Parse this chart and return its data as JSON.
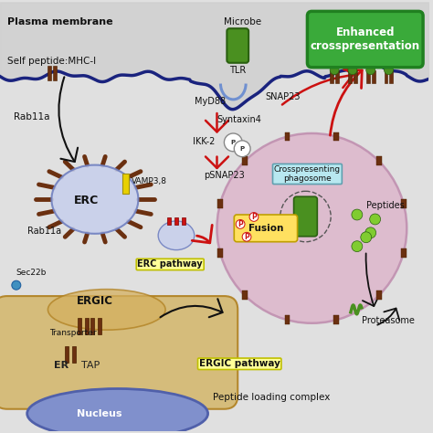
{
  "bg_outer": "#e0e0e0",
  "cell_bg": "#eef4d8",
  "plasma_membrane_color": "#1a237e",
  "extracell_color": "#c8c8c8",
  "nucleus_color": "#8090d0",
  "er_color": "#d4b870",
  "phagosome_color": "#ddb8cc",
  "erc_color": "#c0c8e8",
  "green_box": "#3aaa3a",
  "yellow_box": "#ffff99",
  "cyan_box": "#b8e8f0",
  "labels": {
    "plasma_membrane": "Plasma membrane",
    "self_peptide": "Self peptide:MHC-I",
    "rab11a_top": "Rab11a",
    "rab11a_bottom": "Rab11a",
    "vamp38": "VAMP3,8",
    "erc": "ERC",
    "erc_pathway": "ERC pathway",
    "microbe": "Microbe",
    "tlr": "TLR",
    "myd88": "MyD88",
    "snap23": "SNAP23",
    "syntaxin4": "Syntaxin4",
    "ikk2": "IKK-2",
    "psnap23": "pSNAP23",
    "enhanced": "Enhanced\ncrosspresentation",
    "crosspresenting": "Crosspresenting\nphagosome",
    "fusion": "Fusion",
    "peptides": "Peptides",
    "sec22b": "Sec22b",
    "ergic": "ERGIC",
    "transporter": "Transporter",
    "er": "ER",
    "tap": "TAP",
    "ergic_pathway": "ERGIC pathway",
    "peptide_loading": "Peptide loading complex",
    "nucleus": "Nucleus",
    "proteasome": "Proteasome"
  },
  "red": "#cc1111",
  "black": "#111111",
  "brown": "#6b3010",
  "dark_brown": "#4a2000",
  "navy": "#1a237e",
  "dark_green": "#2a6010",
  "mid_green": "#4a9020",
  "yellow": "#e8d000",
  "orange_red": "#cc3000"
}
